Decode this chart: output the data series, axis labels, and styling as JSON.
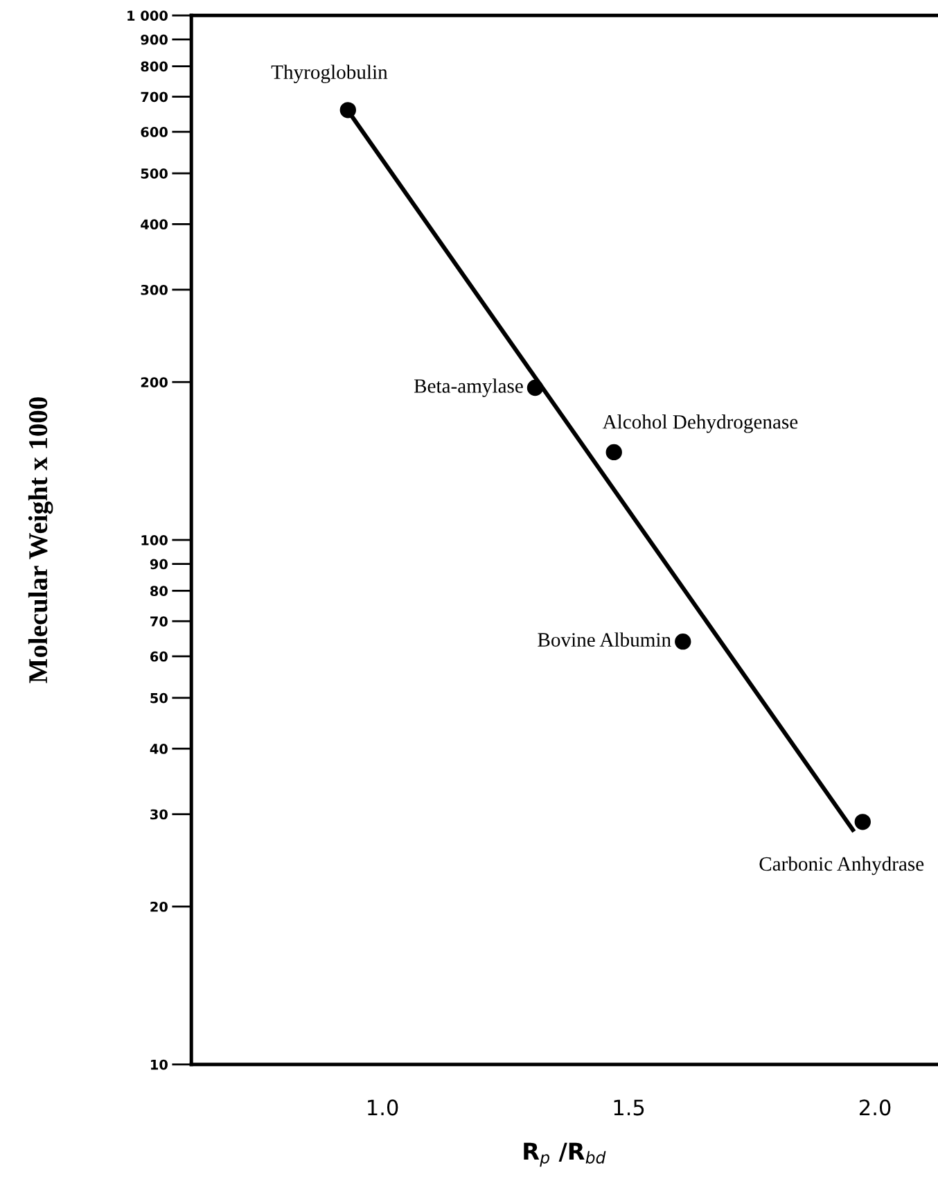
{
  "chart_data": {
    "type": "scatter",
    "xlabel": "R$_{p}$ /R$_{bd}$",
    "ylabel": "Molecular Weight x 1000",
    "log": "y",
    "xlim": [
      0.612,
      2.126
    ],
    "xticks": [
      {
        "value": 1.0,
        "label": "1.0"
      },
      {
        "value": 1.5,
        "label": "1.5"
      },
      {
        "value": 2.0,
        "label": "2.0"
      }
    ],
    "ylim": [
      10,
      1000
    ],
    "yticks": [
      10,
      20,
      30,
      40,
      50,
      60,
      70,
      80,
      90,
      100,
      200,
      300,
      400,
      500,
      600,
      700,
      800,
      900,
      {
        "value": 1000,
        "label": "1 000"
      }
    ],
    "grid": false,
    "marker": "circle",
    "series": [
      {
        "color": "#000000",
        "x": [
          0.93,
          1.31,
          1.47,
          1.61,
          1.975
        ],
        "values": [
          660,
          195,
          147,
          64,
          29
        ]
      },
      {
        "type": "line",
        "color": "#000000",
        "x": [
          0.93,
          1.955
        ],
        "values": [
          658,
          28
        ],
        "marker": "none",
        "line_style": "solid"
      }
    ],
    "annotations": [
      {
        "text": "Thyroglobulin",
        "x": 0.93,
        "y": 660
      },
      {
        "text": "Beta-amylase",
        "x": 1.31,
        "y": 195
      },
      {
        "text": "Alcohol Dehydrogenase",
        "x": 1.47,
        "y": 147
      },
      {
        "text": "Bovine Albumin",
        "x": 1.61,
        "y": 64
      },
      {
        "text": "Carbonic Anhydrase",
        "x": 1.975,
        "y": 29
      }
    ]
  }
}
